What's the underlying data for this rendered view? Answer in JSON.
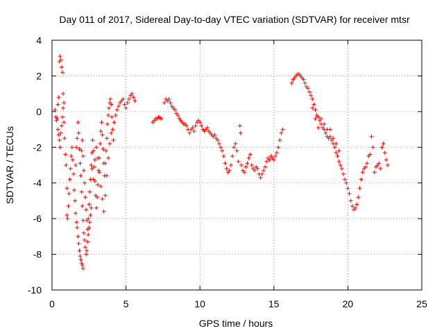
{
  "chart_data": {
    "type": "scatter",
    "title": "Day 011 of 2017, Sidereal Day-to-day VTEC variation (SDTVAR) for receiver mtsr",
    "xlabel": "GPS time / hours",
    "ylabel": "SDTVAR / TECUs",
    "xlim": [
      0,
      25
    ],
    "ylim": [
      -10,
      4
    ],
    "xticks": [
      "0",
      "5",
      "10",
      "15",
      "20",
      "25"
    ],
    "yticks": [
      "4",
      "2",
      "0",
      "-2",
      "-4",
      "-6",
      "-8",
      "-10"
    ],
    "grid": true,
    "marker": "+",
    "color": "#ff0000",
    "series": [
      {
        "name": "SDTVAR",
        "points": [
          [
            0.2,
            0.1
          ],
          [
            0.25,
            -0.3
          ],
          [
            0.3,
            -0.5
          ],
          [
            0.35,
            -0.4
          ],
          [
            0.4,
            0.4
          ],
          [
            0.45,
            0.8
          ],
          [
            0.5,
            2.8
          ],
          [
            0.55,
            3.1
          ],
          [
            0.6,
            2.9
          ],
          [
            0.65,
            2.5
          ],
          [
            0.7,
            2.2
          ],
          [
            0.75,
            1.0
          ],
          [
            0.8,
            0.5
          ],
          [
            0.4,
            -1.0
          ],
          [
            0.45,
            -1.3
          ],
          [
            0.5,
            -1.6
          ],
          [
            0.55,
            -2.0
          ],
          [
            0.6,
            -1.2
          ],
          [
            0.65,
            -0.8
          ],
          [
            0.7,
            -0.3
          ],
          [
            0.75,
            0.2
          ],
          [
            0.8,
            -0.6
          ],
          [
            0.85,
            -1.5
          ],
          [
            0.9,
            -2.4
          ],
          [
            0.95,
            -3.0
          ],
          [
            1.0,
            -4.3
          ],
          [
            1.0,
            -5.8
          ],
          [
            1.05,
            -6.0
          ],
          [
            1.1,
            -5.3
          ],
          [
            1.15,
            -4.6
          ],
          [
            1.2,
            -3.8
          ],
          [
            1.25,
            -3.2
          ],
          [
            1.3,
            -2.5
          ],
          [
            1.35,
            -2.0
          ],
          [
            1.4,
            -2.7
          ],
          [
            1.45,
            -3.5
          ],
          [
            1.5,
            -4.4
          ],
          [
            1.55,
            -5.0
          ],
          [
            1.6,
            -5.7
          ],
          [
            1.65,
            -6.2
          ],
          [
            1.7,
            -6.5
          ],
          [
            1.75,
            -7.0
          ],
          [
            1.8,
            -7.4
          ],
          [
            1.85,
            -7.8
          ],
          [
            1.9,
            -8.1
          ],
          [
            1.95,
            -8.3
          ],
          [
            2.0,
            -8.5
          ],
          [
            2.05,
            -8.6
          ],
          [
            2.1,
            -8.8
          ],
          [
            1.6,
            -3.0
          ],
          [
            1.65,
            -2.0
          ],
          [
            1.7,
            -1.5
          ],
          [
            1.75,
            -0.6
          ],
          [
            1.8,
            -1.2
          ],
          [
            1.85,
            -2.1
          ],
          [
            1.9,
            -2.9
          ],
          [
            1.95,
            -3.6
          ],
          [
            2.0,
            -4.5
          ],
          [
            2.05,
            -5.3
          ],
          [
            2.1,
            -6.1
          ],
          [
            2.15,
            -6.8
          ],
          [
            2.2,
            -7.2
          ],
          [
            2.25,
            -7.6
          ],
          [
            2.3,
            -8.0
          ],
          [
            2.35,
            -7.8
          ],
          [
            2.4,
            -7.3
          ],
          [
            2.45,
            -6.9
          ],
          [
            2.5,
            -6.5
          ],
          [
            2.55,
            -6.2
          ],
          [
            2.6,
            -5.8
          ],
          [
            2.65,
            -5.4
          ],
          [
            2.0,
            -2.2
          ],
          [
            2.05,
            -1.6
          ],
          [
            2.1,
            -2.5
          ],
          [
            2.15,
            -3.3
          ],
          [
            2.2,
            -4.0
          ],
          [
            2.25,
            -4.8
          ],
          [
            2.3,
            -5.5
          ],
          [
            2.35,
            -6.1
          ],
          [
            2.4,
            -6.6
          ],
          [
            2.45,
            -6.0
          ],
          [
            2.5,
            -5.2
          ],
          [
            2.55,
            -4.5
          ],
          [
            2.6,
            -3.8
          ],
          [
            2.65,
            -3.0
          ],
          [
            2.7,
            -2.3
          ],
          [
            2.75,
            -1.6
          ],
          [
            2.8,
            -2.2
          ],
          [
            2.85,
            -3.1
          ],
          [
            2.9,
            -3.9
          ],
          [
            2.95,
            -4.7
          ],
          [
            3.0,
            -5.4
          ],
          [
            3.05,
            -4.8
          ],
          [
            3.1,
            -4.1
          ],
          [
            3.15,
            -3.3
          ],
          [
            3.2,
            -2.6
          ],
          [
            3.25,
            -1.8
          ],
          [
            3.3,
            -1.1
          ],
          [
            3.35,
            -0.6
          ],
          [
            3.4,
            -1.3
          ],
          [
            3.45,
            -2.1
          ],
          [
            3.5,
            -2.9
          ],
          [
            3.55,
            -3.6
          ],
          [
            3.6,
            -2.9
          ],
          [
            3.65,
            -2.2
          ],
          [
            3.7,
            -1.5
          ],
          [
            3.75,
            -0.7
          ],
          [
            3.8,
            -0.2
          ],
          [
            3.85,
            0.2
          ],
          [
            3.9,
            0.5
          ],
          [
            3.95,
            0.7
          ],
          [
            4.0,
            0.4
          ],
          [
            4.05,
            -0.3
          ],
          [
            4.1,
            -1.0
          ],
          [
            4.15,
            -1.6
          ],
          [
            2.7,
            -3.2
          ],
          [
            2.8,
            -3.8
          ],
          [
            2.9,
            -2.7
          ],
          [
            3.0,
            -2.0
          ],
          [
            3.1,
            -2.6
          ],
          [
            3.2,
            -3.4
          ],
          [
            3.3,
            -4.2
          ],
          [
            3.4,
            -4.9
          ],
          [
            3.5,
            -5.6
          ],
          [
            3.6,
            -4.7
          ],
          [
            3.7,
            -3.6
          ],
          [
            3.8,
            -2.6
          ],
          [
            3.9,
            -1.8
          ],
          [
            4.0,
            -1.2
          ],
          [
            4.2,
            -0.6
          ],
          [
            4.3,
            -0.2
          ],
          [
            4.4,
            0.1
          ],
          [
            4.5,
            0.3
          ],
          [
            4.6,
            0.5
          ],
          [
            4.7,
            0.6
          ],
          [
            4.8,
            0.7
          ],
          [
            4.9,
            0.4
          ],
          [
            5.0,
            0.2
          ],
          [
            5.1,
            0.5
          ],
          [
            5.2,
            0.7
          ],
          [
            5.3,
            0.9
          ],
          [
            5.4,
            1.0
          ],
          [
            5.5,
            0.8
          ],
          [
            5.6,
            0.6
          ],
          [
            6.8,
            -0.6
          ],
          [
            6.9,
            -0.5
          ],
          [
            7.0,
            -0.4
          ],
          [
            7.1,
            -0.4
          ],
          [
            7.2,
            -0.3
          ],
          [
            7.3,
            -0.35
          ],
          [
            7.4,
            -0.4
          ],
          [
            7.6,
            0.5
          ],
          [
            7.7,
            0.7
          ],
          [
            7.8,
            0.6
          ],
          [
            7.9,
            0.7
          ],
          [
            8.0,
            0.5
          ],
          [
            8.1,
            0.3
          ],
          [
            8.2,
            0.2
          ],
          [
            8.3,
            0.1
          ],
          [
            8.4,
            -0.1
          ],
          [
            8.5,
            -0.2
          ],
          [
            8.6,
            -0.4
          ],
          [
            8.7,
            -0.5
          ],
          [
            8.8,
            -0.6
          ],
          [
            8.9,
            -0.7
          ],
          [
            9.0,
            -0.7
          ],
          [
            9.1,
            -0.8
          ],
          [
            9.2,
            -1.0
          ],
          [
            9.3,
            -1.2
          ],
          [
            9.4,
            -1.0
          ],
          [
            9.5,
            -0.9
          ],
          [
            9.6,
            -1.1
          ],
          [
            9.7,
            -0.8
          ],
          [
            9.8,
            -0.6
          ],
          [
            9.9,
            -0.5
          ],
          [
            10.0,
            -0.6
          ],
          [
            10.1,
            -0.8
          ],
          [
            10.2,
            -1.0
          ],
          [
            10.3,
            -1.1
          ],
          [
            10.4,
            -1.0
          ],
          [
            10.5,
            -0.9
          ],
          [
            10.6,
            -1.1
          ],
          [
            10.7,
            -1.2
          ],
          [
            10.8,
            -1.3
          ],
          [
            10.9,
            -1.4
          ],
          [
            11.0,
            -1.3
          ],
          [
            11.1,
            -1.5
          ],
          [
            11.2,
            -1.6
          ],
          [
            11.3,
            -1.8
          ],
          [
            11.4,
            -2.0
          ],
          [
            11.5,
            -2.2
          ],
          [
            11.6,
            -2.5
          ],
          [
            11.7,
            -2.9
          ],
          [
            11.8,
            -3.2
          ],
          [
            11.9,
            -3.4
          ],
          [
            12.0,
            -3.3
          ],
          [
            12.1,
            -3.0
          ],
          [
            12.2,
            -2.5
          ],
          [
            12.3,
            -2.0
          ],
          [
            12.4,
            -1.8
          ],
          [
            12.5,
            -2.2
          ],
          [
            12.6,
            -2.8
          ],
          [
            12.7,
            -0.8
          ],
          [
            12.75,
            -1.2
          ],
          [
            12.8,
            -3.0
          ],
          [
            12.9,
            -3.3
          ],
          [
            13.0,
            -3.4
          ],
          [
            13.1,
            -3.1
          ],
          [
            13.2,
            -2.9
          ],
          [
            13.3,
            -2.6
          ],
          [
            13.4,
            -2.4
          ],
          [
            13.5,
            -3.0
          ],
          [
            13.6,
            -3.2
          ],
          [
            13.7,
            -3.3
          ],
          [
            13.8,
            -3.1
          ],
          [
            13.9,
            -3.2
          ],
          [
            14.0,
            -3.5
          ],
          [
            14.1,
            -3.7
          ],
          [
            14.2,
            -3.5
          ],
          [
            14.3,
            -3.3
          ],
          [
            14.4,
            -3.1
          ],
          [
            14.5,
            -2.8
          ],
          [
            14.6,
            -2.6
          ],
          [
            14.7,
            -2.7
          ],
          [
            14.8,
            -2.5
          ],
          [
            14.9,
            -2.6
          ],
          [
            15.0,
            -2.7
          ],
          [
            15.1,
            -2.5
          ],
          [
            15.2,
            -2.3
          ],
          [
            15.3,
            -2.0
          ],
          [
            15.4,
            -1.6
          ],
          [
            15.5,
            -1.2
          ],
          [
            15.6,
            -1.0
          ],
          [
            16.2,
            1.6
          ],
          [
            16.3,
            1.8
          ],
          [
            16.4,
            1.9
          ],
          [
            16.5,
            2.0
          ],
          [
            16.6,
            2.1
          ],
          [
            16.7,
            2.1
          ],
          [
            16.8,
            2.0
          ],
          [
            16.9,
            1.9
          ],
          [
            17.0,
            1.8
          ],
          [
            17.1,
            1.6
          ],
          [
            17.2,
            1.4
          ],
          [
            17.3,
            1.3
          ],
          [
            17.4,
            1.1
          ],
          [
            17.5,
            0.9
          ],
          [
            17.6,
            0.7
          ],
          [
            17.7,
            0.4
          ],
          [
            17.8,
            0.1
          ],
          [
            17.9,
            -0.2
          ],
          [
            18.0,
            -0.3
          ],
          [
            18.1,
            -0.5
          ],
          [
            18.2,
            -0.7
          ],
          [
            18.3,
            -0.9
          ],
          [
            18.4,
            -1.0
          ],
          [
            18.5,
            -1.2
          ],
          [
            18.6,
            -1.4
          ],
          [
            18.7,
            -1.5
          ],
          [
            18.8,
            -1.4
          ],
          [
            18.9,
            -1.6
          ],
          [
            19.0,
            -1.8
          ],
          [
            19.1,
            -2.0
          ],
          [
            19.2,
            -2.3
          ],
          [
            19.3,
            -2.5
          ],
          [
            19.4,
            -2.8
          ],
          [
            19.5,
            -3.0
          ],
          [
            19.6,
            -3.2
          ],
          [
            19.7,
            -3.5
          ],
          [
            19.8,
            -3.8
          ],
          [
            19.9,
            -4.0
          ],
          [
            20.0,
            -4.3
          ],
          [
            20.1,
            -4.6
          ],
          [
            20.2,
            -5.0
          ],
          [
            20.3,
            -5.3
          ],
          [
            20.4,
            -5.5
          ],
          [
            20.5,
            -5.4
          ],
          [
            20.6,
            -5.2
          ],
          [
            20.7,
            -4.8
          ],
          [
            20.8,
            -4.3
          ],
          [
            20.9,
            -3.8
          ],
          [
            21.0,
            -3.4
          ],
          [
            21.1,
            -3.2
          ],
          [
            21.2,
            -3.1
          ],
          [
            21.3,
            -2.9
          ],
          [
            21.4,
            -2.5
          ],
          [
            21.5,
            -2.4
          ],
          [
            21.6,
            -1.4
          ],
          [
            21.7,
            -2.0
          ],
          [
            21.8,
            -3.4
          ],
          [
            21.9,
            -3.1
          ],
          [
            22.0,
            -3.0
          ],
          [
            22.1,
            -2.9
          ],
          [
            22.2,
            -3.2
          ],
          [
            22.3,
            -2.0
          ],
          [
            22.4,
            -1.8
          ],
          [
            22.5,
            -2.3
          ],
          [
            22.6,
            -2.7
          ],
          [
            22.7,
            -3.0
          ],
          [
            17.6,
            0.2
          ],
          [
            17.8,
            -0.4
          ],
          [
            18.0,
            -0.9
          ],
          [
            18.2,
            -0.4
          ],
          [
            18.4,
            -0.7
          ],
          [
            18.6,
            -1.0
          ],
          [
            18.8,
            -1.0
          ],
          [
            19.0,
            -1.5
          ],
          [
            19.2,
            -1.8
          ],
          [
            19.4,
            -2.2
          ]
        ]
      }
    ]
  }
}
